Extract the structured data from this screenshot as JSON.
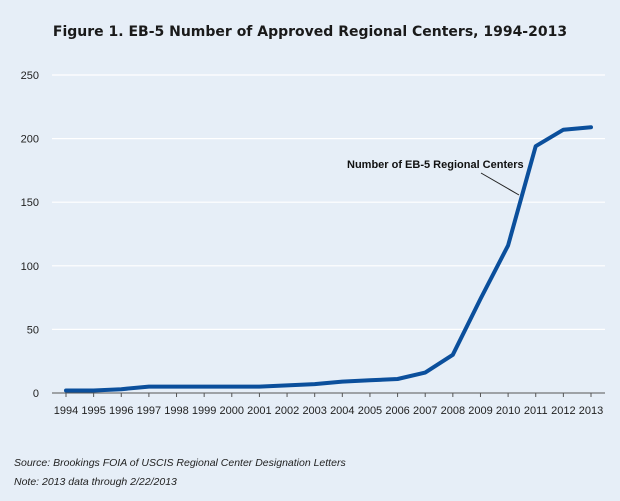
{
  "chart_data": {
    "type": "line",
    "title": "Figure 1. EB-5 Number of Approved Regional Centers, 1994-2013",
    "x": [
      "1994",
      "1995",
      "1996",
      "1997",
      "1998",
      "1999",
      "2000",
      "2001",
      "2002",
      "2003",
      "2004",
      "2005",
      "2006",
      "2007",
      "2008",
      "2009",
      "2010",
      "2011",
      "2012",
      "2013"
    ],
    "series": [
      {
        "name": "Number of EB-5 Regional Centers",
        "color": "#0b4f9c",
        "values": [
          2,
          2,
          3,
          5,
          5,
          5,
          5,
          5,
          6,
          7,
          9,
          10,
          11,
          16,
          30,
          74,
          116,
          194,
          207,
          209
        ]
      }
    ],
    "ylim": [
      0,
      250
    ],
    "yticks": [
      0,
      50,
      100,
      150,
      200,
      250
    ],
    "grid": true,
    "xlabel": "",
    "ylabel": "",
    "annotation": "Number of EB-5 Regional Centers",
    "source": "Source: Brookings FOIA of USCIS Regional Center Designation Letters",
    "note": "Note: 2013 data through 2/22/2013"
  }
}
